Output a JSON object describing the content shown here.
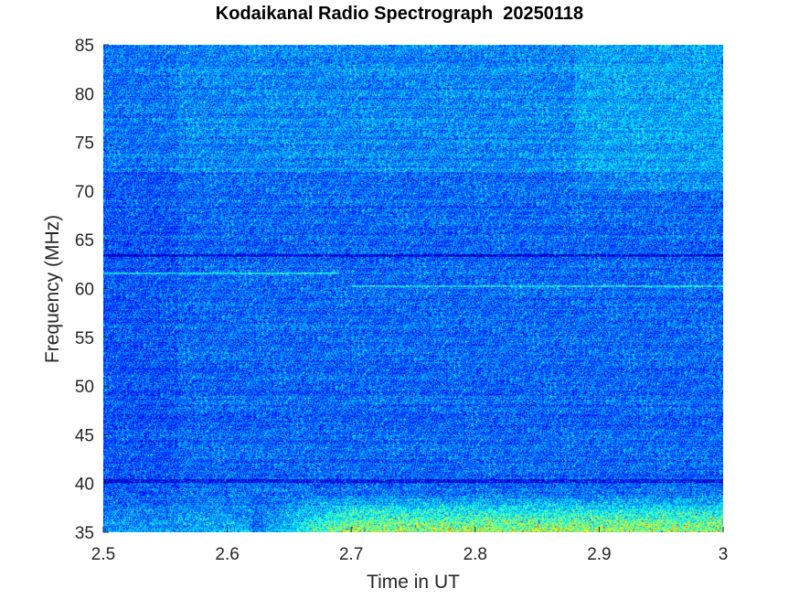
{
  "chart_data": {
    "type": "heatmap",
    "title": "Kodaikanal Radio Spectrograph  20250118",
    "xlabel": "Time in UT",
    "ylabel": "Frequency (MHz)",
    "xlim": [
      2.5,
      3.0
    ],
    "ylim": [
      35,
      85
    ],
    "xticks": [
      "2.5",
      "2.6",
      "2.7",
      "2.8",
      "2.9",
      "3"
    ],
    "yticks": [
      "35",
      "40",
      "45",
      "50",
      "55",
      "60",
      "65",
      "70",
      "75",
      "80",
      "85"
    ],
    "xtick_values": [
      2.5,
      2.6,
      2.7,
      2.8,
      2.9,
      3.0
    ],
    "ytick_values": [
      35,
      40,
      45,
      50,
      55,
      60,
      65,
      70,
      75,
      80,
      85
    ],
    "colormap": "jet",
    "features": [
      {
        "kind": "dark-band",
        "freq": 63.4
      },
      {
        "kind": "bright-line",
        "freq": 61.6,
        "t_start": 2.5,
        "t_end": 2.69
      },
      {
        "kind": "bright-line",
        "freq": 60.3,
        "t_start": 2.7,
        "t_end": 3.0
      },
      {
        "kind": "dark-band",
        "freq": 40.3
      },
      {
        "kind": "enhanced-emission",
        "freq_min": 35,
        "freq_max": 39,
        "t_start": 2.62,
        "t_end": 3.0
      }
    ]
  }
}
